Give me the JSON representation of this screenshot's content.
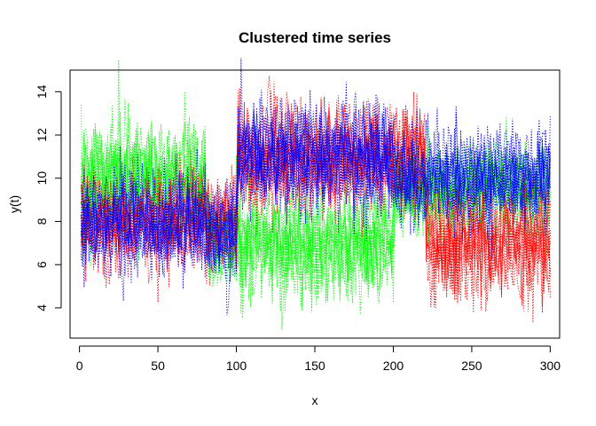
{
  "chart_data": {
    "type": "line",
    "title": "Clustered time series",
    "xlabel": "x",
    "ylabel": "y(t)",
    "xlim": [
      -6,
      306
    ],
    "ylim": [
      2.6,
      15.0
    ],
    "xticks": [
      0,
      50,
      100,
      150,
      200,
      250,
      300
    ],
    "yticks": [
      4,
      6,
      8,
      10,
      12,
      14
    ],
    "grid": false,
    "line_style": "dotted",
    "colors": {
      "green": "#00ff00",
      "red": "#ff0000",
      "blue": "#0000ff"
    },
    "series": [
      {
        "color": "green",
        "segments": [
          {
            "x": [
              1,
              80
            ],
            "mean": 10.0,
            "spread": 1.3
          },
          {
            "x": [
              81,
              100
            ],
            "mean": 7.0,
            "spread": 1.1
          },
          {
            "x": [
              101,
              200
            ],
            "mean": 7.0,
            "spread": 1.2
          },
          {
            "x": [
              201,
              300
            ],
            "mean": 9.5,
            "spread": 1.0
          }
        ]
      },
      {
        "color": "red",
        "segments": [
          {
            "x": [
              1,
              80
            ],
            "mean": 8.0,
            "spread": 1.1
          },
          {
            "x": [
              81,
              100
            ],
            "mean": 7.7,
            "spread": 1.0
          },
          {
            "x": [
              101,
              220
            ],
            "mean": 11.0,
            "spread": 1.2
          },
          {
            "x": [
              221,
              300
            ],
            "mean": 7.0,
            "spread": 1.3
          }
        ]
      },
      {
        "color": "blue",
        "segments": [
          {
            "x": [
              1,
              80
            ],
            "mean": 8.0,
            "spread": 1.1
          },
          {
            "x": [
              81,
              100
            ],
            "mean": 7.5,
            "spread": 1.0
          },
          {
            "x": [
              101,
              200
            ],
            "mean": 11.0,
            "spread": 1.2
          },
          {
            "x": [
              201,
              300
            ],
            "mean": 10.0,
            "spread": 1.1
          }
        ]
      }
    ]
  }
}
